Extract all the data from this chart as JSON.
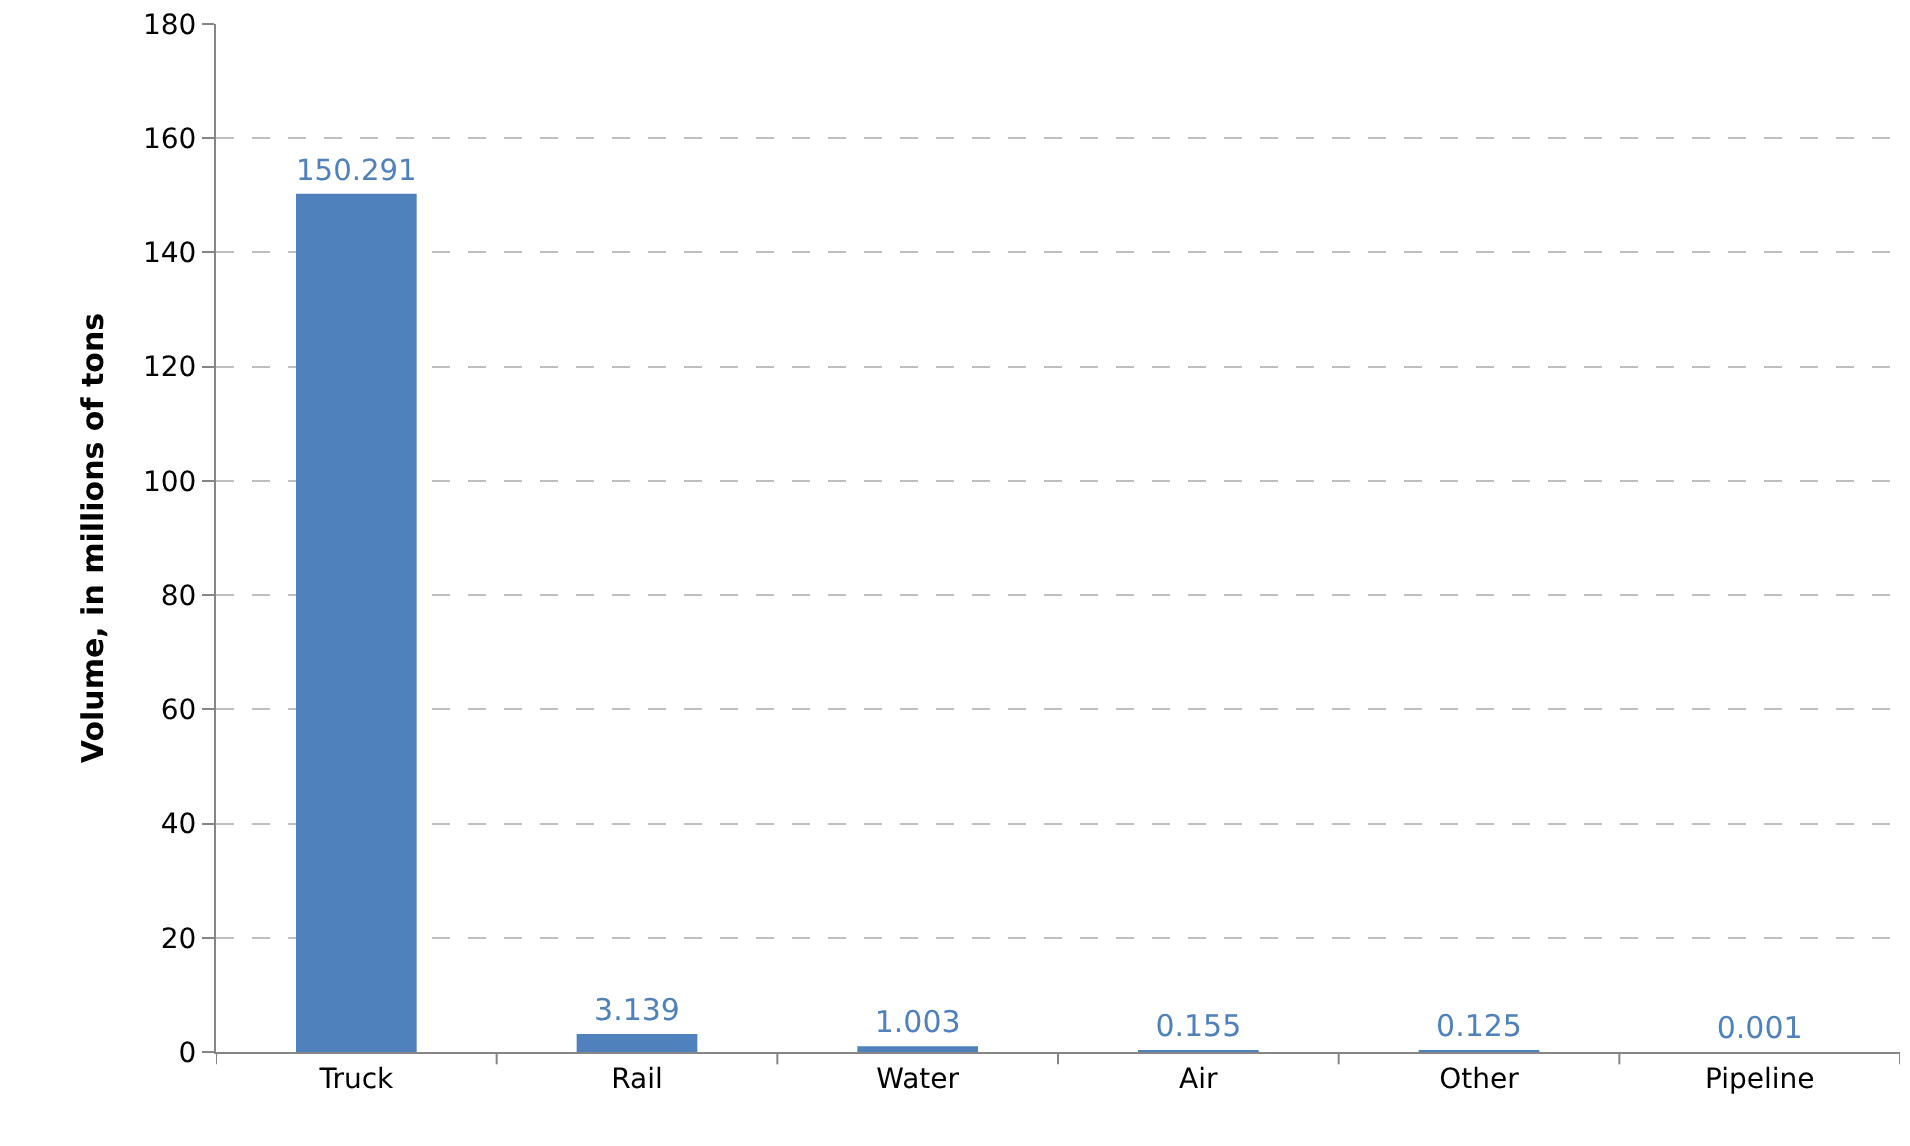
{
  "chart_data": {
    "type": "bar",
    "ylabel": "Volume, in millions of tons",
    "categories": [
      "Truck",
      "Rail",
      "Water",
      "Air",
      "Other",
      "Pipeline"
    ],
    "values": [
      150.291,
      3.139,
      1.003,
      0.155,
      0.125,
      0.001
    ],
    "color": "#4f81bd",
    "ylim": [
      0,
      180
    ],
    "yticks": [
      0,
      20,
      40,
      60,
      80,
      100,
      120,
      140,
      160,
      180
    ],
    "grid": "y",
    "data_labels": true
  }
}
